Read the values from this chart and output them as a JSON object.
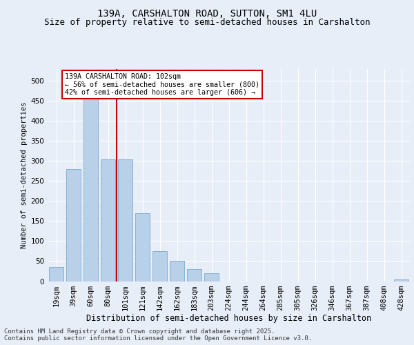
{
  "title1": "139A, CARSHALTON ROAD, SUTTON, SM1 4LU",
  "title2": "Size of property relative to semi-detached houses in Carshalton",
  "xlabel": "Distribution of semi-detached houses by size in Carshalton",
  "ylabel": "Number of semi-detached properties",
  "categories": [
    "19sqm",
    "39sqm",
    "60sqm",
    "80sqm",
    "101sqm",
    "121sqm",
    "142sqm",
    "162sqm",
    "183sqm",
    "203sqm",
    "224sqm",
    "244sqm",
    "264sqm",
    "285sqm",
    "305sqm",
    "326sqm",
    "346sqm",
    "367sqm",
    "387sqm",
    "408sqm",
    "428sqm"
  ],
  "values": [
    35,
    280,
    475,
    305,
    305,
    170,
    75,
    50,
    30,
    20,
    0,
    0,
    0,
    0,
    0,
    0,
    0,
    0,
    0,
    0,
    5
  ],
  "bar_color": "#b8d0e8",
  "bar_edge_color": "#7aaacf",
  "vline_x_index": 4,
  "vline_color": "#cc0000",
  "annotation_text": "139A CARSHALTON ROAD: 102sqm\n← 56% of semi-detached houses are smaller (800)\n42% of semi-detached houses are larger (606) →",
  "annotation_box_color": "#ffffff",
  "annotation_box_edge_color": "#cc0000",
  "footer": "Contains HM Land Registry data © Crown copyright and database right 2025.\nContains public sector information licensed under the Open Government Licence v3.0.",
  "bg_color": "#e8eef8",
  "plot_bg_color": "#e8eef8",
  "ylim": [
    0,
    530
  ],
  "yticks": [
    0,
    50,
    100,
    150,
    200,
    250,
    300,
    350,
    400,
    450,
    500
  ],
  "title1_fontsize": 10,
  "title2_fontsize": 9,
  "xlabel_fontsize": 8.5,
  "ylabel_fontsize": 7.5,
  "tick_fontsize": 7.5,
  "footer_fontsize": 6.5
}
